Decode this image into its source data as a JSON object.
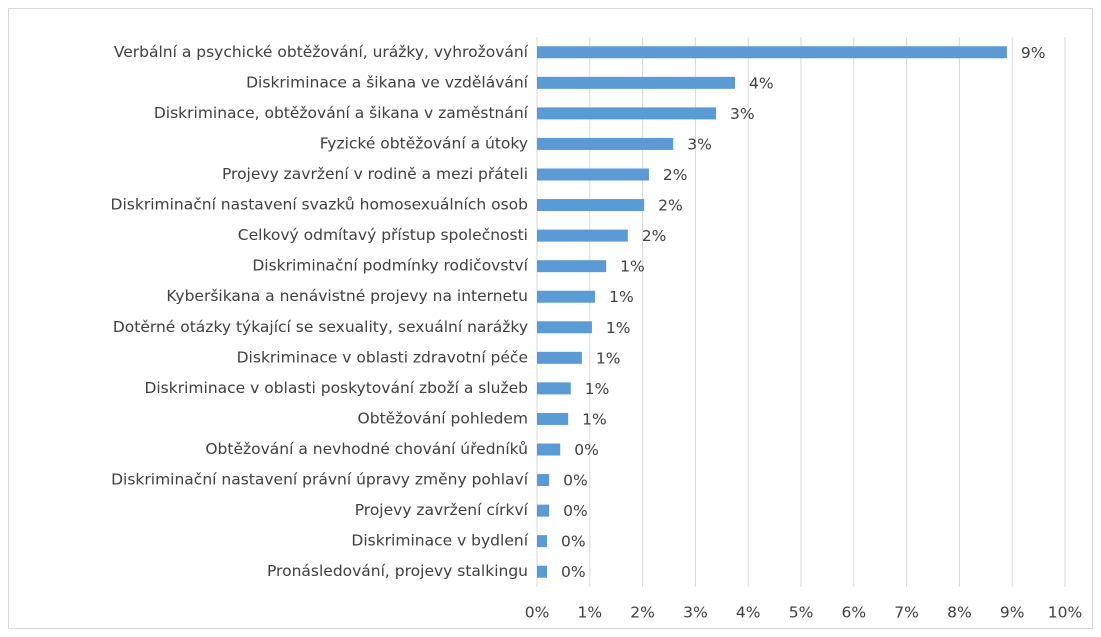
{
  "chart_data": {
    "type": "bar",
    "orientation": "horizontal",
    "categories": [
      "Verbální a psychické obtěžování, urážky, vyhrožování",
      "Diskriminace a šikana ve vzdělávání",
      "Diskriminace, obtěžování a šikana v zaměstnání",
      "Fyzické obtěžování a útoky",
      "Projevy zavržení v rodině a mezi přáteli",
      "Diskriminační nastavení svazků homosexuálních osob",
      "Celkový odmítavý přístup společnosti",
      "Diskriminační podmínky rodičovství",
      "Kyberšikana a nenávistné projevy na internetu",
      "Dotěrné otázky týkající se sexuality, sexuální narážky",
      "Diskriminace v oblasti zdravotní péče",
      "Diskriminace v oblasti poskytování zboží a služeb",
      "Obtěžování pohledem",
      "Obtěžování a nevhodné chování úředníků",
      "Diskriminační nastavení právní úpravy změny pohlaví",
      "Projevy zavržení církví",
      "Diskriminace v bydlení",
      "Pronásledování, projevy stalkingu"
    ],
    "values": [
      8.9,
      3.75,
      3.39,
      2.58,
      2.12,
      2.03,
      1.72,
      1.31,
      1.1,
      1.04,
      0.85,
      0.64,
      0.59,
      0.44,
      0.23,
      0.23,
      0.19,
      0.19
    ],
    "value_labels": [
      "9%",
      "4%",
      "3%",
      "3%",
      "2%",
      "2%",
      "2%",
      "1%",
      "1%",
      "1%",
      "1%",
      "1%",
      "1%",
      "0%",
      "0%",
      "0%",
      "0%",
      "0%"
    ],
    "color": "#5b9bd5",
    "xlim": [
      0,
      10
    ],
    "xticks": [
      {
        "value": 0,
        "label": "0%"
      },
      {
        "value": 1,
        "label": "1%"
      },
      {
        "value": 2,
        "label": "2%"
      },
      {
        "value": 3,
        "label": "3%"
      },
      {
        "value": 4,
        "label": "4%"
      },
      {
        "value": 5,
        "label": "5%"
      },
      {
        "value": 6,
        "label": "6%"
      },
      {
        "value": 7,
        "label": "7%"
      },
      {
        "value": 8,
        "label": "8%"
      },
      {
        "value": 9,
        "label": "9%"
      },
      {
        "value": 10,
        "label": "10%"
      }
    ],
    "grid": true
  }
}
